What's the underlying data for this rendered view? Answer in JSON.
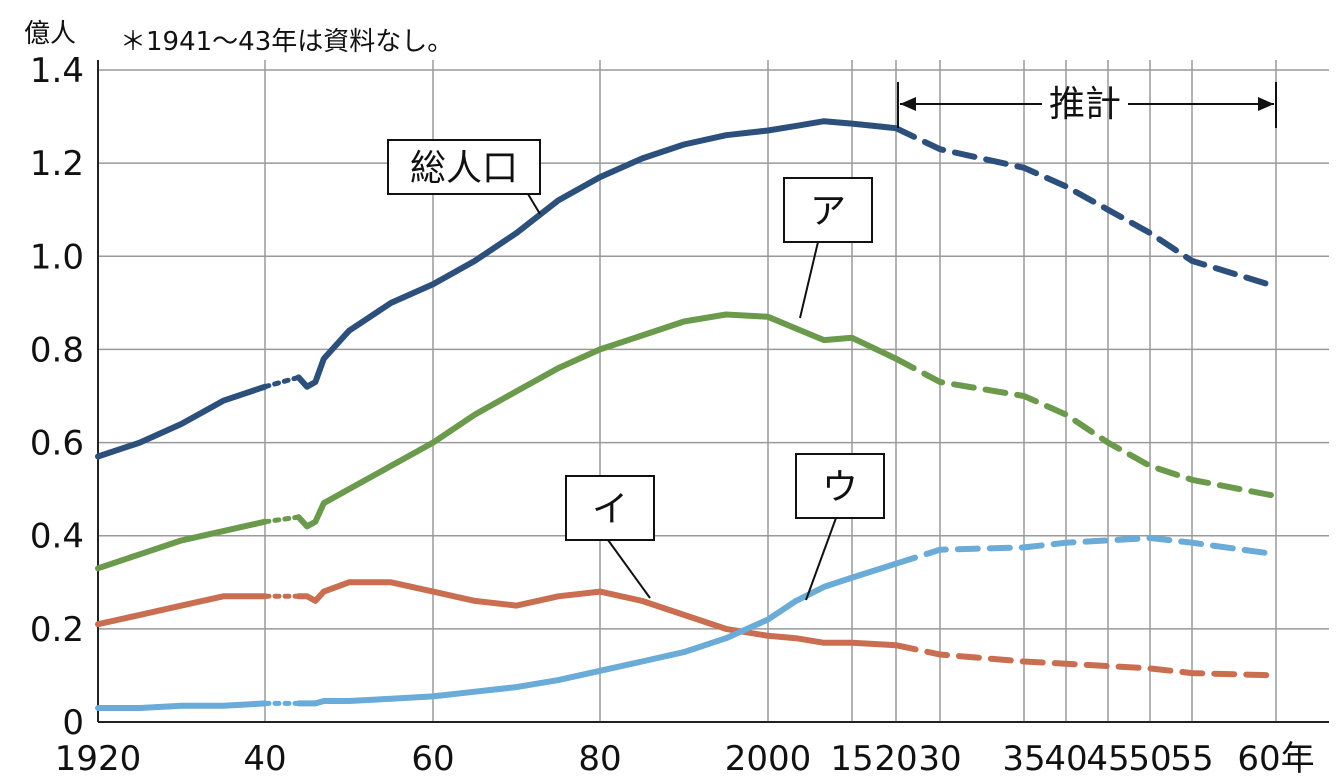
{
  "chart_data": {
    "type": "line",
    "title": "",
    "ylabel": "億人",
    "xlabel": "",
    "note": "＊1941～43年は資料なし。",
    "projection_label": "推計",
    "projection_range": [
      2020,
      2060
    ],
    "x_tick_labels": [
      "1920",
      "40",
      "60",
      "80",
      "2000",
      "15",
      "20",
      "30",
      "35",
      "40",
      "45",
      "50",
      "55",
      "60年"
    ],
    "x_ticks": [
      1920,
      1940,
      1960,
      1980,
      2000,
      2015,
      2020,
      2030,
      2035,
      2040,
      2045,
      2050,
      2055,
      2060
    ],
    "y_ticks": [
      0,
      0.2,
      0.4,
      0.6,
      0.8,
      1.0,
      1.2,
      1.4
    ],
    "y_tick_labels": [
      "0",
      "0.2",
      "0.4",
      "0.6",
      "0.8",
      "1.0",
      "1.2",
      "1.4"
    ],
    "ylim": [
      0,
      1.4
    ],
    "grid": true,
    "missing_data_range": [
      1941,
      1943
    ],
    "series": [
      {
        "name": "総人口",
        "color": "#2d4f7c",
        "x": [
          1920,
          1925,
          1930,
          1935,
          1940,
          1944,
          1945,
          1946,
          1947,
          1950,
          1955,
          1960,
          1965,
          1970,
          1975,
          1980,
          1985,
          1990,
          1995,
          2000,
          2005,
          2010,
          2015,
          2020
        ],
        "y": [
          0.57,
          0.6,
          0.64,
          0.69,
          0.72,
          0.74,
          0.72,
          0.73,
          0.78,
          0.84,
          0.9,
          0.94,
          0.99,
          1.05,
          1.12,
          1.17,
          1.21,
          1.24,
          1.26,
          1.27,
          1.28,
          1.29,
          1.285,
          1.275
        ],
        "projection_x": [
          2020,
          2030,
          2035,
          2040,
          2045,
          2050,
          2055,
          2060
        ],
        "projection_y": [
          1.275,
          1.23,
          1.19,
          1.15,
          1.1,
          1.05,
          0.99,
          0.935
        ]
      },
      {
        "name": "ア",
        "color": "#6b9a4c",
        "x": [
          1920,
          1925,
          1930,
          1935,
          1940,
          1944,
          1945,
          1946,
          1947,
          1950,
          1955,
          1960,
          1965,
          1970,
          1975,
          1980,
          1985,
          1990,
          1995,
          2000,
          2005,
          2010,
          2015,
          2020
        ],
        "y": [
          0.33,
          0.36,
          0.39,
          0.41,
          0.43,
          0.44,
          0.42,
          0.43,
          0.47,
          0.5,
          0.55,
          0.6,
          0.66,
          0.71,
          0.76,
          0.8,
          0.83,
          0.86,
          0.875,
          0.87,
          0.845,
          0.82,
          0.825,
          0.78
        ],
        "projection_x": [
          2020,
          2030,
          2035,
          2040,
          2045,
          2050,
          2055,
          2060
        ],
        "projection_y": [
          0.78,
          0.73,
          0.7,
          0.66,
          0.6,
          0.55,
          0.52,
          0.485
        ]
      },
      {
        "name": "イ",
        "color": "#c96e50",
        "x": [
          1920,
          1925,
          1930,
          1935,
          1940,
          1944,
          1945,
          1946,
          1947,
          1950,
          1955,
          1960,
          1965,
          1970,
          1975,
          1980,
          1985,
          1990,
          1995,
          2000,
          2005,
          2010,
          2015,
          2020
        ],
        "y": [
          0.21,
          0.23,
          0.25,
          0.27,
          0.27,
          0.27,
          0.27,
          0.26,
          0.28,
          0.3,
          0.3,
          0.28,
          0.26,
          0.25,
          0.27,
          0.28,
          0.26,
          0.23,
          0.2,
          0.185,
          0.18,
          0.17,
          0.17,
          0.165
        ],
        "projection_x": [
          2020,
          2030,
          2035,
          2040,
          2045,
          2050,
          2055,
          2060
        ],
        "projection_y": [
          0.165,
          0.145,
          0.13,
          0.125,
          0.12,
          0.115,
          0.105,
          0.1
        ]
      },
      {
        "name": "ウ",
        "color": "#6aabd7",
        "x": [
          1920,
          1925,
          1930,
          1935,
          1940,
          1944,
          1945,
          1946,
          1947,
          1950,
          1955,
          1960,
          1965,
          1970,
          1975,
          1980,
          1985,
          1990,
          1995,
          2000,
          2005,
          2010,
          2015,
          2020
        ],
        "y": [
          0.03,
          0.03,
          0.035,
          0.035,
          0.04,
          0.04,
          0.04,
          0.04,
          0.045,
          0.045,
          0.05,
          0.055,
          0.065,
          0.075,
          0.09,
          0.11,
          0.13,
          0.15,
          0.18,
          0.22,
          0.26,
          0.29,
          0.31,
          0.34
        ],
        "projection_x": [
          2020,
          2030,
          2035,
          2040,
          2045,
          2050,
          2055,
          2060
        ],
        "projection_y": [
          0.34,
          0.37,
          0.375,
          0.385,
          0.39,
          0.395,
          0.385,
          0.36
        ]
      }
    ]
  }
}
